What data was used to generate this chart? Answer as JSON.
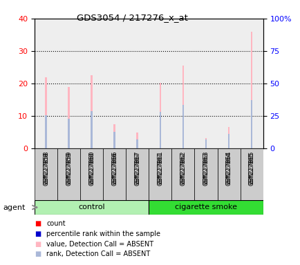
{
  "title": "GDS3054 / 217276_x_at",
  "samples": [
    "GSM227858",
    "GSM227859",
    "GSM227860",
    "GSM227866",
    "GSM227867",
    "GSM227861",
    "GSM227862",
    "GSM227863",
    "GSM227864",
    "GSM227865"
  ],
  "groups": [
    "control",
    "control",
    "control",
    "control",
    "control",
    "cigarette smoke",
    "cigarette smoke",
    "cigarette smoke",
    "cigarette smoke",
    "cigarette smoke"
  ],
  "value_absent": [
    22,
    19,
    22.5,
    7.5,
    4.8,
    20.2,
    25.5,
    3.2,
    6.5,
    36
  ],
  "rank_absent": [
    10.2,
    9.2,
    11.5,
    5.2,
    2.8,
    11.2,
    13.5,
    2.7,
    4.5,
    14.8
  ],
  "left_ylim": [
    0,
    40
  ],
  "right_ylim": [
    0,
    100
  ],
  "left_yticks": [
    0,
    10,
    20,
    30,
    40
  ],
  "right_yticks": [
    0,
    25,
    50,
    75,
    100
  ],
  "right_yticklabels": [
    "0",
    "25",
    "50",
    "75",
    "100%"
  ],
  "ctrl_color_light": "#b2f0b2",
  "ctrl_color_dark": "#33dd33",
  "bar_color_absent_value": "#FFB6C1",
  "bar_color_absent_rank": "#aab8d8",
  "bar_width": 0.08,
  "agent_label": "agent",
  "group_label_control": "control",
  "group_label_smoke": "cigarette smoke",
  "legend_items": [
    {
      "color": "#FF0000",
      "label": "count"
    },
    {
      "color": "#0000CC",
      "label": "percentile rank within the sample"
    },
    {
      "color": "#FFB6C1",
      "label": "value, Detection Call = ABSENT"
    },
    {
      "color": "#aab8d8",
      "label": "rank, Detection Call = ABSENT"
    }
  ],
  "tick_bg_color": "#cccccc",
  "plot_bg": "white"
}
